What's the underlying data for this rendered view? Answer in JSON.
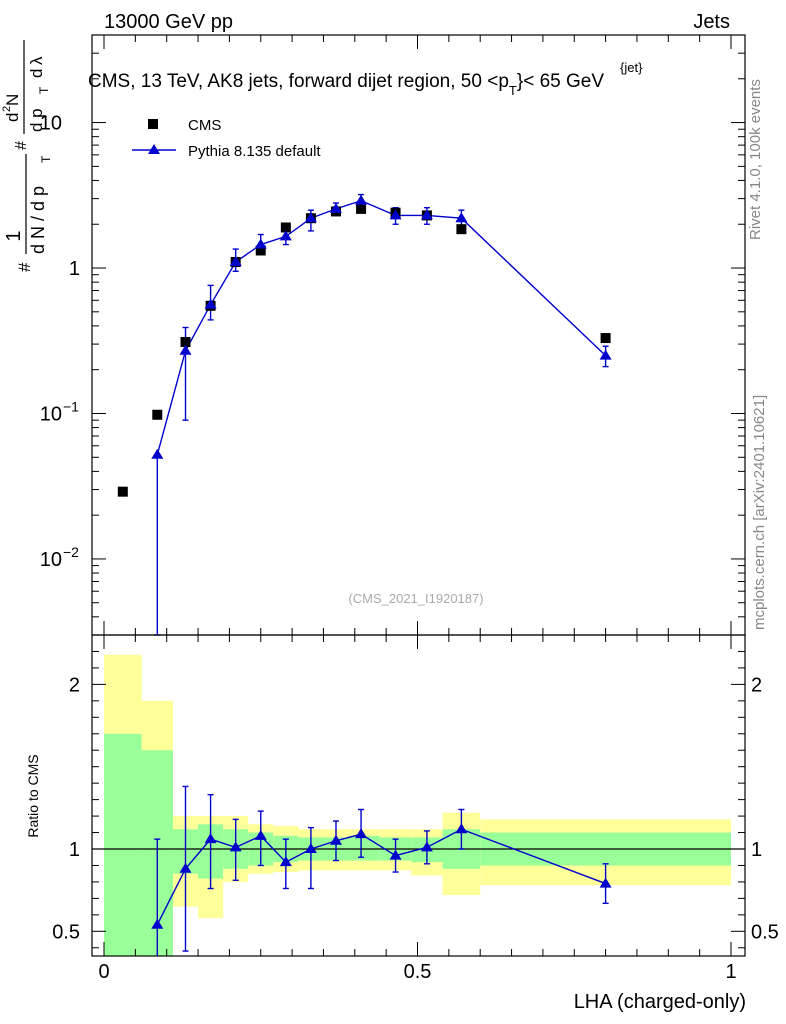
{
  "header": {
    "left": "13000 GeV pp",
    "right": "Jets"
  },
  "side": {
    "rivet": "Rivet 4.1.0,  100k events",
    "mcplots": "mcplots.cern.ch [arXiv:2401.10621]"
  },
  "chart_data": [
    {
      "type": "scatter",
      "title": "CMS, 13 TeV, AK8 jets, forward dijet region, 50 <p",
      "title_sup": "{jet}",
      "title_sub": "T",
      "title_end": "}< 65 GeV",
      "ylabel_parts": [
        "#",
        "1",
        "d N / d p",
        "T",
        "#",
        "d",
        "2",
        "N",
        "d p",
        "T",
        "d",
        "λ"
      ],
      "watermark": "(CMS_2021_I1920187)",
      "yscale": "log",
      "xlim": [
        0,
        1
      ],
      "ylim": [
        0.003,
        40
      ],
      "yticks": [
        {
          "value": 0.01,
          "base": "10",
          "exp": "−2"
        },
        {
          "value": 0.1,
          "base": "10",
          "exp": "−1"
        },
        {
          "value": 1,
          "label": "1"
        },
        {
          "value": 10,
          "base": "10",
          "exp": ""
        }
      ],
      "legend_position": "top-left",
      "series": [
        {
          "name": "CMS",
          "marker": "square",
          "color": "#000000",
          "x": [
            0.03,
            0.085,
            0.13,
            0.17,
            0.21,
            0.25,
            0.29,
            0.33,
            0.37,
            0.41,
            0.465,
            0.515,
            0.57,
            0.8
          ],
          "y": [
            0.029,
            0.098,
            0.31,
            0.55,
            1.1,
            1.32,
            1.9,
            2.2,
            2.45,
            2.55,
            2.4,
            2.3,
            1.85,
            0.33
          ]
        },
        {
          "name": "Pythia 8.135 default",
          "marker": "triangle",
          "color": "#0000cc",
          "x": [
            0.085,
            0.13,
            0.17,
            0.21,
            0.25,
            0.29,
            0.33,
            0.37,
            0.41,
            0.465,
            0.515,
            0.57,
            0.8
          ],
          "y": [
            0.052,
            0.27,
            0.56,
            1.1,
            1.45,
            1.65,
            2.2,
            2.55,
            2.9,
            2.3,
            2.3,
            2.2,
            0.25
          ],
          "err_low": [
            0.05,
            0.18,
            0.12,
            0.15,
            0.15,
            0.2,
            0.4,
            0.25,
            0.3,
            0.3,
            0.3,
            0.3,
            0.04
          ],
          "err_high": [
            0.0,
            0.12,
            0.2,
            0.25,
            0.25,
            0.25,
            0.3,
            0.25,
            0.3,
            0.3,
            0.3,
            0.3,
            0.04
          ]
        }
      ]
    },
    {
      "type": "scatter",
      "ylabel": "Ratio to CMS",
      "xlabel": "LHA (charged-only)",
      "xlim": [
        0,
        1
      ],
      "ylim": [
        0.35,
        2.3
      ],
      "xticks": [
        {
          "value": 0,
          "label": "0"
        },
        {
          "value": 0.5,
          "label": "0.5"
        },
        {
          "value": 1,
          "label": "1"
        }
      ],
      "yticks": [
        {
          "value": 0.5,
          "label": "0.5"
        },
        {
          "value": 1,
          "label": "1"
        },
        {
          "value": 2,
          "label": "2"
        }
      ],
      "bands": [
        {
          "x0": 0.0,
          "x1": 0.06,
          "in_lo": 0.35,
          "in_hi": 1.7,
          "out_lo": 0.35,
          "out_hi": 2.18
        },
        {
          "x0": 0.06,
          "x1": 0.11,
          "in_lo": 0.35,
          "in_hi": 1.6,
          "out_lo": 0.35,
          "out_hi": 1.9
        },
        {
          "x0": 0.11,
          "x1": 0.15,
          "in_lo": 0.85,
          "in_hi": 1.12,
          "out_lo": 0.65,
          "out_hi": 1.2
        },
        {
          "x0": 0.15,
          "x1": 0.19,
          "in_lo": 0.82,
          "in_hi": 1.15,
          "out_lo": 0.58,
          "out_hi": 1.2
        },
        {
          "x0": 0.19,
          "x1": 0.23,
          "in_lo": 0.88,
          "in_hi": 1.12,
          "out_lo": 0.8,
          "out_hi": 1.2
        },
        {
          "x0": 0.23,
          "x1": 0.27,
          "in_lo": 0.9,
          "in_hi": 1.1,
          "out_lo": 0.85,
          "out_hi": 1.15
        },
        {
          "x0": 0.27,
          "x1": 0.31,
          "in_lo": 0.92,
          "in_hi": 1.08,
          "out_lo": 0.86,
          "out_hi": 1.14
        },
        {
          "x0": 0.31,
          "x1": 0.35,
          "in_lo": 0.93,
          "in_hi": 1.07,
          "out_lo": 0.87,
          "out_hi": 1.12
        },
        {
          "x0": 0.35,
          "x1": 0.39,
          "in_lo": 0.93,
          "in_hi": 1.07,
          "out_lo": 0.87,
          "out_hi": 1.12
        },
        {
          "x0": 0.39,
          "x1": 0.44,
          "in_lo": 0.93,
          "in_hi": 1.08,
          "out_lo": 0.87,
          "out_hi": 1.12
        },
        {
          "x0": 0.44,
          "x1": 0.49,
          "in_lo": 0.93,
          "in_hi": 1.07,
          "out_lo": 0.87,
          "out_hi": 1.12
        },
        {
          "x0": 0.49,
          "x1": 0.54,
          "in_lo": 0.92,
          "in_hi": 1.07,
          "out_lo": 0.84,
          "out_hi": 1.12
        },
        {
          "x0": 0.54,
          "x1": 0.6,
          "in_lo": 0.88,
          "in_hi": 1.12,
          "out_lo": 0.72,
          "out_hi": 1.22
        },
        {
          "x0": 0.6,
          "x1": 1.0,
          "in_lo": 0.9,
          "in_hi": 1.1,
          "out_lo": 0.78,
          "out_hi": 1.18
        }
      ],
      "reference_line": 1,
      "series": [
        {
          "name": "Pythia 8.135 default / CMS",
          "marker": "triangle",
          "color": "#0000cc",
          "x": [
            0.085,
            0.13,
            0.17,
            0.21,
            0.25,
            0.29,
            0.33,
            0.37,
            0.41,
            0.465,
            0.515,
            0.57,
            0.8
          ],
          "y": [
            0.54,
            0.88,
            1.06,
            1.01,
            1.08,
            0.92,
            1.0,
            1.05,
            1.09,
            0.96,
            1.01,
            1.12,
            0.79
          ],
          "err_low": [
            0.54,
            0.5,
            0.3,
            0.2,
            0.18,
            0.16,
            0.24,
            0.12,
            0.14,
            0.1,
            0.1,
            0.12,
            0.12
          ],
          "err_high": [
            0.52,
            0.5,
            0.27,
            0.17,
            0.15,
            0.14,
            0.13,
            0.12,
            0.15,
            0.1,
            0.1,
            0.12,
            0.12
          ]
        }
      ]
    }
  ]
}
